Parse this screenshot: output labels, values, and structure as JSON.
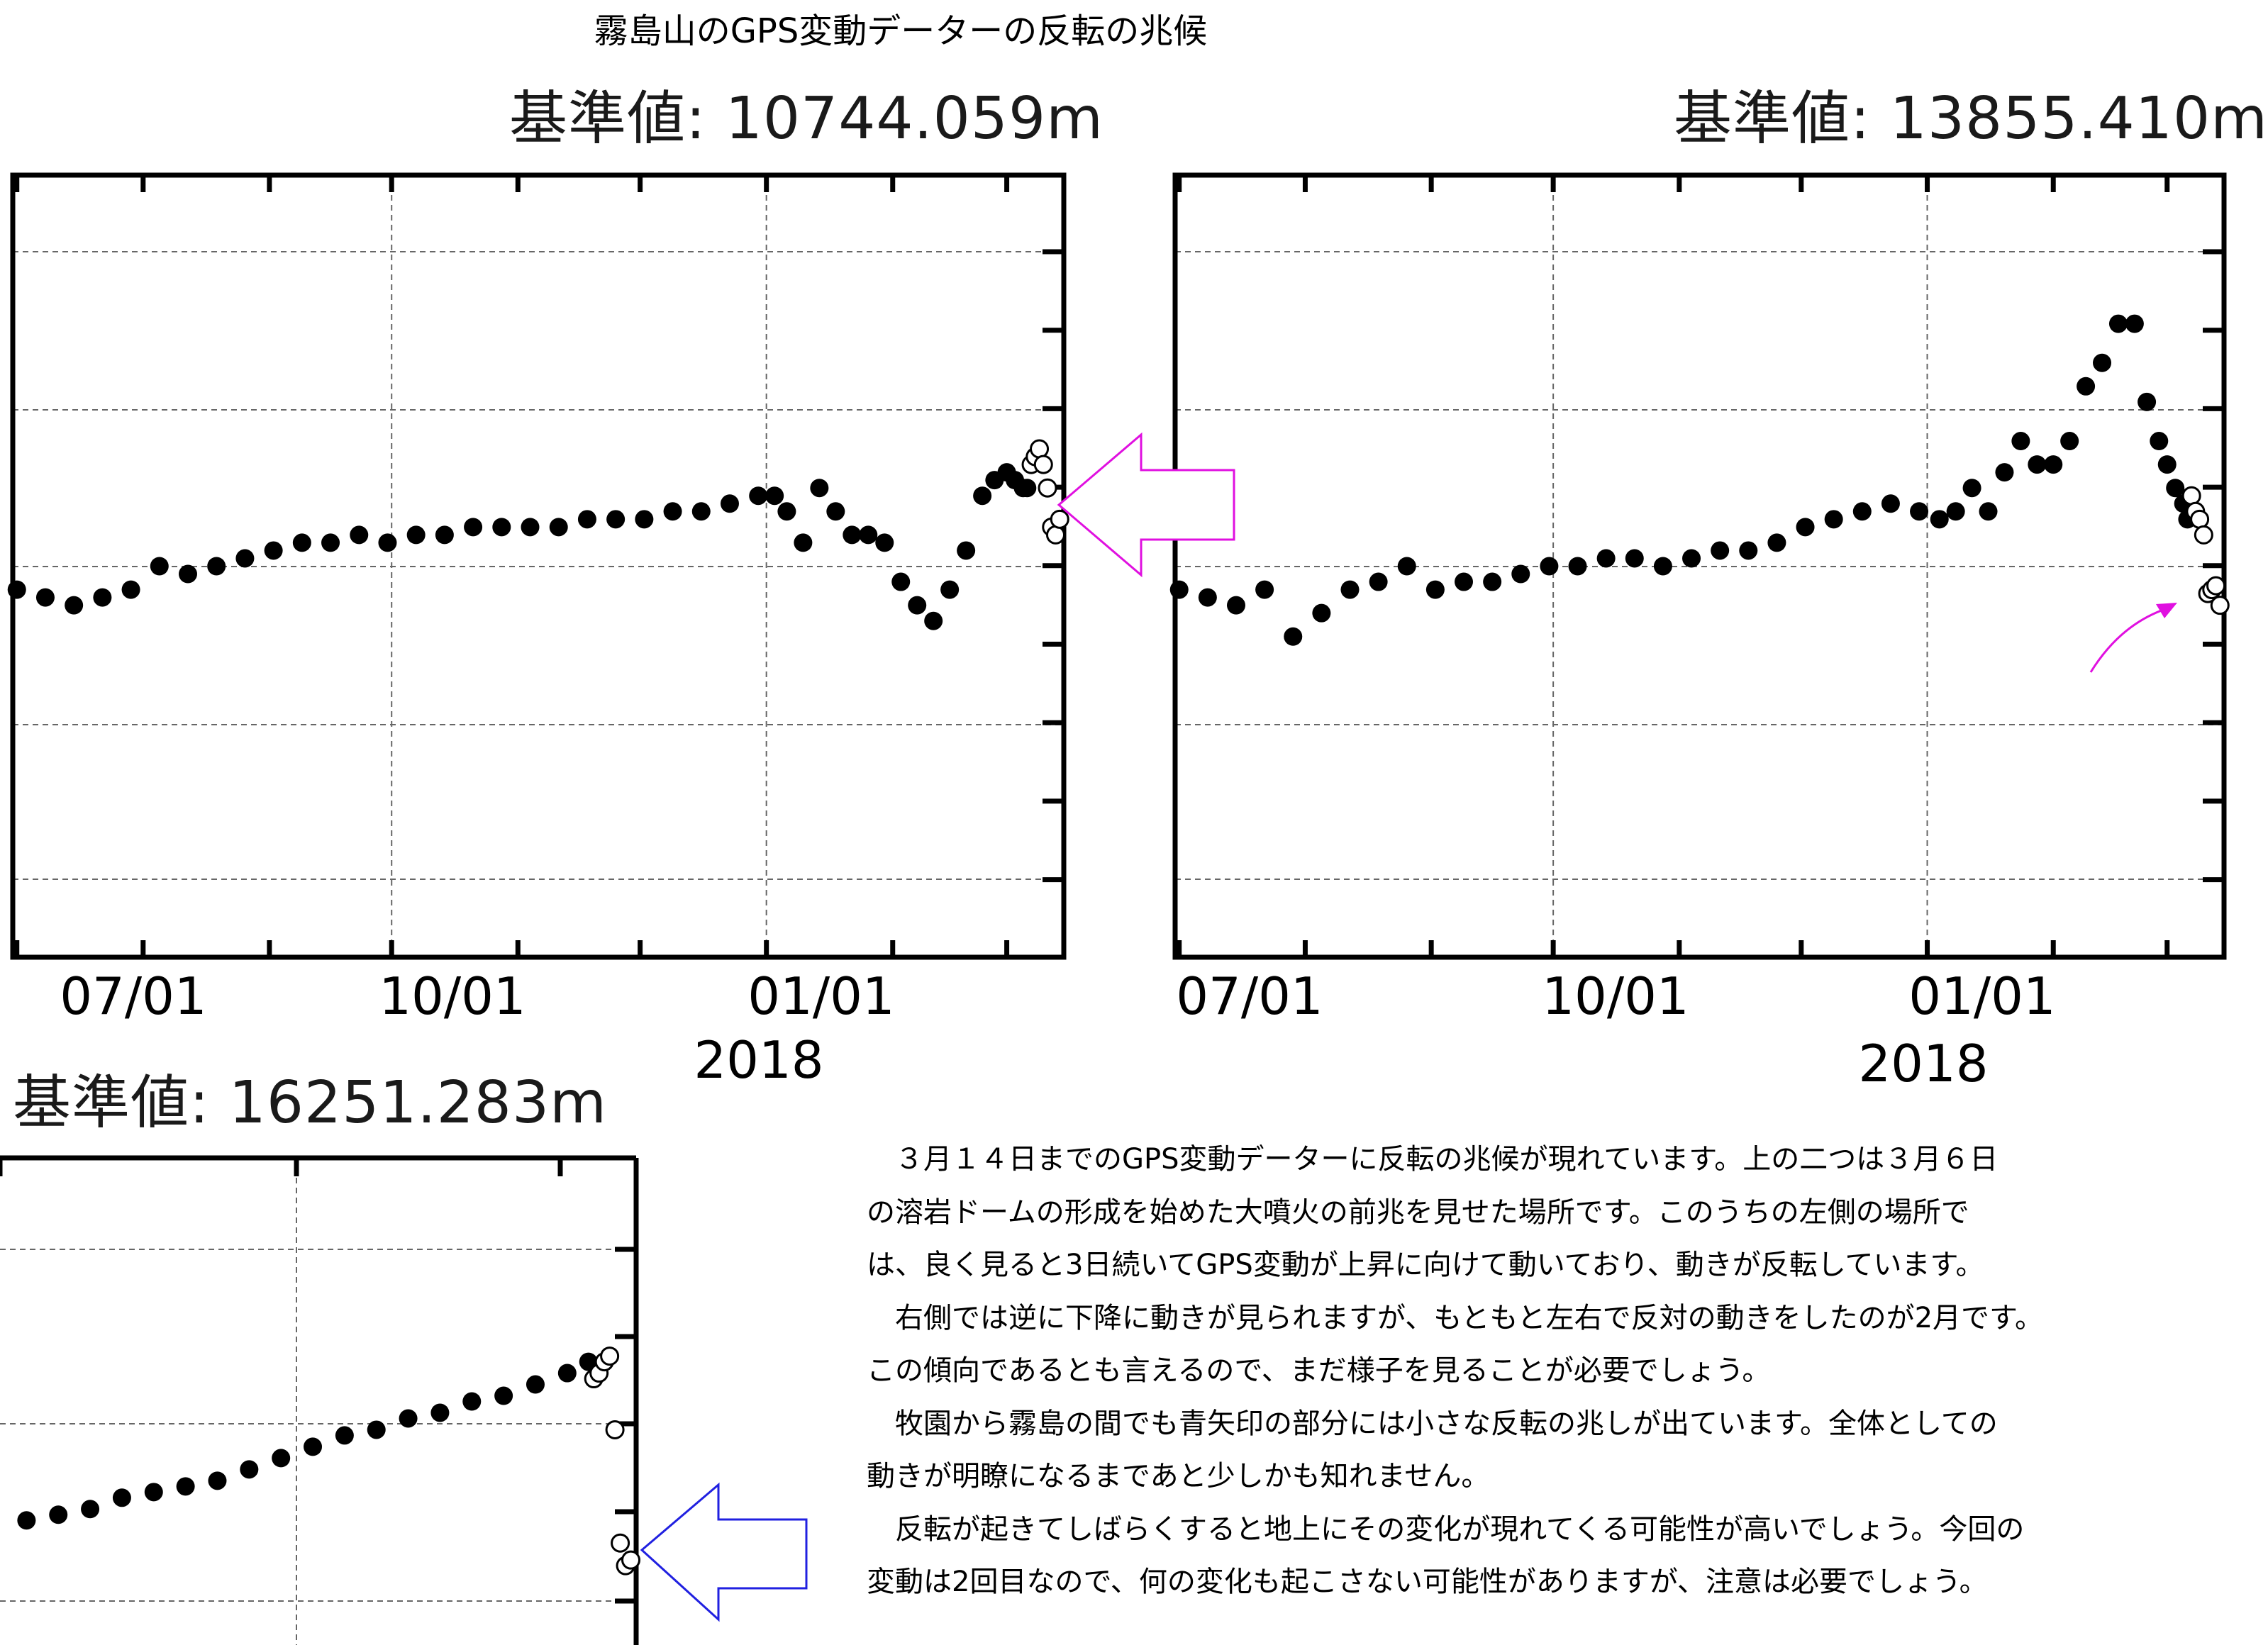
{
  "title": "霧島山のGPS変動データーの反転の兆候",
  "chart_data": [
    {
      "type": "scatter",
      "title": "基準値: 10744.059m",
      "xlabel": "",
      "ylabel": "",
      "x_range": [
        "2017-06-30",
        "2018-03-15"
      ],
      "x_ticks": [
        "07/01",
        "10/01",
        "01/01"
      ],
      "x_year_label": "2018",
      "y_range": [
        -5,
        5
      ],
      "grid": true,
      "series": [
        {
          "marker": "filled",
          "x": [
            "2017-07-01",
            "2017-07-08",
            "2017-07-15",
            "2017-07-22",
            "2017-07-29",
            "2017-08-05",
            "2017-08-12",
            "2017-08-19",
            "2017-08-26",
            "2017-09-02",
            "2017-09-09",
            "2017-09-16",
            "2017-09-23",
            "2017-09-30",
            "2017-10-07",
            "2017-10-14",
            "2017-10-21",
            "2017-10-28",
            "2017-11-04",
            "2017-11-11",
            "2017-11-18",
            "2017-11-25",
            "2017-12-02",
            "2017-12-09",
            "2017-12-16",
            "2017-12-23",
            "2017-12-30",
            "2018-01-03",
            "2018-01-06",
            "2018-01-10",
            "2018-01-14",
            "2018-01-18",
            "2018-01-22",
            "2018-01-26",
            "2018-01-30",
            "2018-02-03",
            "2018-02-07",
            "2018-02-11",
            "2018-02-15",
            "2018-02-19",
            "2018-02-23",
            "2018-02-26",
            "2018-03-01",
            "2018-03-03",
            "2018-03-05",
            "2018-03-06"
          ],
          "y": [
            -0.3,
            -0.4,
            -0.5,
            -0.4,
            -0.3,
            0.0,
            -0.1,
            0.0,
            0.1,
            0.2,
            0.3,
            0.3,
            0.4,
            0.3,
            0.4,
            0.4,
            0.5,
            0.5,
            0.5,
            0.5,
            0.6,
            0.6,
            0.6,
            0.7,
            0.7,
            0.8,
            0.9,
            0.9,
            0.7,
            0.3,
            1.0,
            0.7,
            0.4,
            0.4,
            0.3,
            -0.2,
            -0.5,
            -0.7,
            -0.3,
            0.2,
            0.9,
            1.1,
            1.2,
            1.1,
            1.0,
            1.0
          ]
        },
        {
          "marker": "open",
          "x": [
            "2018-03-07",
            "2018-03-08",
            "2018-03-09",
            "2018-03-10",
            "2018-03-11",
            "2018-03-12",
            "2018-03-13",
            "2018-03-14"
          ],
          "y": [
            1.3,
            1.4,
            1.5,
            1.3,
            1.0,
            0.5,
            0.4,
            0.6
          ]
        }
      ]
    },
    {
      "type": "scatter",
      "title": "基準値: 13855.410m",
      "xlabel": "",
      "ylabel": "",
      "x_range": [
        "2017-06-30",
        "2018-03-15"
      ],
      "x_ticks": [
        "07/01",
        "10/01",
        "01/01"
      ],
      "x_year_label": "2018",
      "y_range": [
        -5,
        5
      ],
      "grid": true,
      "series": [
        {
          "marker": "filled",
          "x": [
            "2017-07-01",
            "2017-07-08",
            "2017-07-15",
            "2017-07-22",
            "2017-07-29",
            "2017-08-05",
            "2017-08-12",
            "2017-08-19",
            "2017-08-26",
            "2017-09-02",
            "2017-09-09",
            "2017-09-16",
            "2017-09-23",
            "2017-09-30",
            "2017-10-07",
            "2017-10-14",
            "2017-10-21",
            "2017-10-28",
            "2017-11-04",
            "2017-11-11",
            "2017-11-18",
            "2017-11-25",
            "2017-12-02",
            "2017-12-09",
            "2017-12-16",
            "2017-12-23",
            "2017-12-30",
            "2018-01-04",
            "2018-01-08",
            "2018-01-12",
            "2018-01-16",
            "2018-01-20",
            "2018-01-24",
            "2018-01-28",
            "2018-02-01",
            "2018-02-05",
            "2018-02-09",
            "2018-02-13",
            "2018-02-17",
            "2018-02-21",
            "2018-02-24",
            "2018-02-27",
            "2018-03-01",
            "2018-03-03",
            "2018-03-05",
            "2018-03-06"
          ],
          "y": [
            -0.3,
            -0.4,
            -0.5,
            -0.3,
            -0.9,
            -0.6,
            -0.3,
            -0.2,
            0.0,
            -0.3,
            -0.2,
            -0.2,
            -0.1,
            0.0,
            0.0,
            0.1,
            0.1,
            0.0,
            0.1,
            0.2,
            0.2,
            0.3,
            0.5,
            0.6,
            0.7,
            0.8,
            0.7,
            0.6,
            0.7,
            1.0,
            0.7,
            1.2,
            1.6,
            1.3,
            1.3,
            1.6,
            2.3,
            2.6,
            3.1,
            3.1,
            2.1,
            1.6,
            1.3,
            1.0,
            0.8,
            0.6
          ]
        },
        {
          "marker": "open",
          "x": [
            "2018-03-07",
            "2018-03-08",
            "2018-03-09",
            "2018-03-10",
            "2018-03-11",
            "2018-03-12",
            "2018-03-13",
            "2018-03-14"
          ],
          "y": [
            0.9,
            0.7,
            0.6,
            0.4,
            -0.35,
            -0.3,
            -0.25,
            -0.5
          ]
        }
      ]
    },
    {
      "type": "scatter",
      "title": "基準値: 16251.283m",
      "xlabel": "",
      "ylabel": "",
      "y_range": [
        -1.6,
        2.7
      ],
      "grid": true,
      "series": [
        {
          "marker": "filled",
          "x": [
            "2017-11-20",
            "2017-11-26",
            "2017-12-02",
            "2017-12-08",
            "2017-12-14",
            "2017-12-20",
            "2017-12-26",
            "2018-01-01",
            "2018-01-07",
            "2018-01-13",
            "2018-01-19",
            "2018-01-25",
            "2018-01-31",
            "2018-02-06",
            "2018-02-12",
            "2018-02-18",
            "2018-02-24",
            "2018-03-02",
            "2018-03-06"
          ],
          "y": [
            -0.5,
            -0.45,
            -0.4,
            -0.3,
            -0.25,
            -0.2,
            -0.15,
            -0.05,
            0.05,
            0.15,
            0.25,
            0.3,
            0.4,
            0.45,
            0.55,
            0.6,
            0.7,
            0.8,
            0.9
          ]
        },
        {
          "marker": "open",
          "x": [
            "2018-03-07",
            "2018-03-08",
            "2018-03-09",
            "2018-03-10",
            "2018-03-11",
            "2018-03-12",
            "2018-03-13",
            "2018-03-14"
          ],
          "y": [
            0.75,
            0.8,
            0.9,
            0.95,
            0.3,
            -0.7,
            -0.9,
            -0.85
          ]
        }
      ]
    }
  ],
  "article": [
    "　３月１４日までのGPS変動データーに反転の兆候が現れています。上の二つは３月６日",
    "の溶岩ドームの形成を始めた大噴火の前兆を見せた場所です。このうちの左側の場所で",
    "は、良く見ると3日続いてGPS変動が上昇に向けて動いており、動きが反転しています。",
    "　右側では逆に下降に動きが見られますが、もともと左右で反対の動きをしたのが2月です。",
    "この傾向であるとも言えるので、まだ様子を見ることが必要でしょう。",
    "　牧園から霧島の間でも青矢印の部分には小さな反転の兆しが出ています。全体としての",
    "動きが明瞭になるまであと少しかも知れません。",
    "　反転が起きてしばらくすると地上にその変化が現れてくる可能性が高いでしょう。今回の",
    "変動は2回目なので、何の変化も起こさない可能性がありますが、注意は必要でしょう。"
  ],
  "colors": {
    "magenta": "#e010e0",
    "blue": "#2020e0",
    "grid": "#666666",
    "axis": "#000000"
  }
}
